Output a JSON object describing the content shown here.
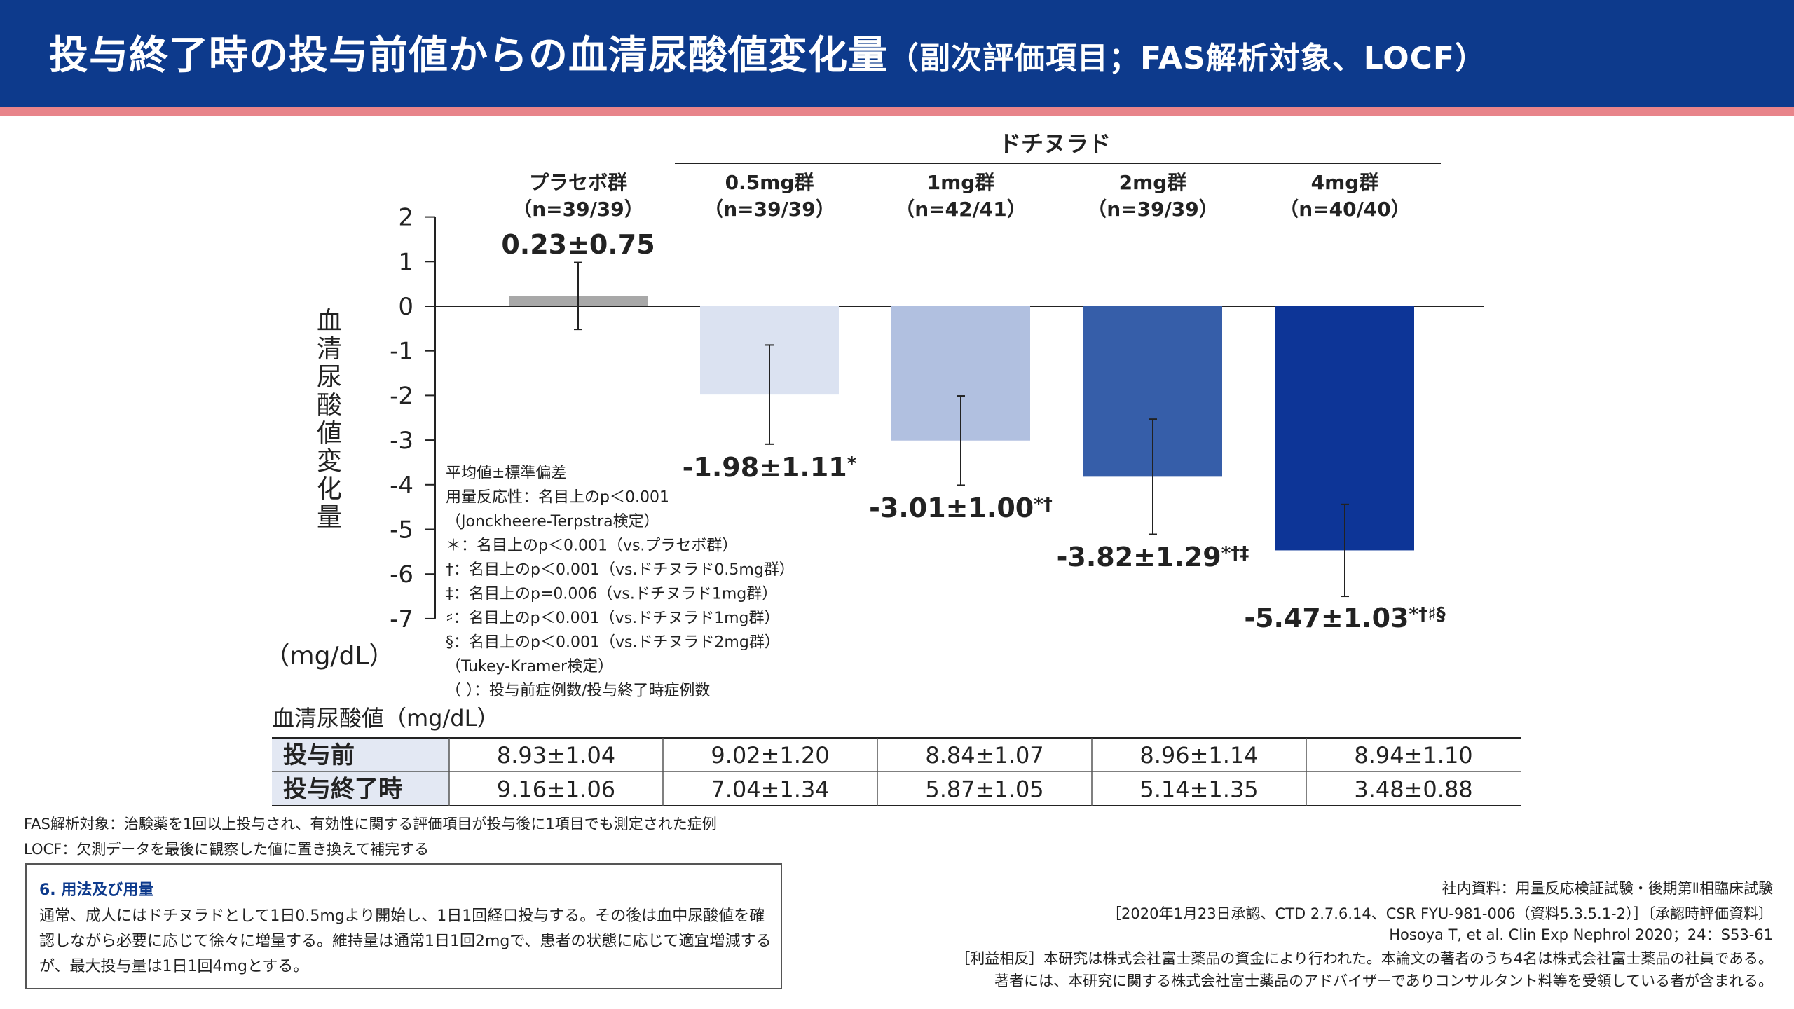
{
  "header": {
    "title_main": "投与終了時の投与前値からの血清尿酸値変化量",
    "title_sub": "（副次評価項目；FAS解析対象、LOCF）"
  },
  "colors": {
    "header_bg": "#0d3a8c",
    "header_stripe": "#e8848a",
    "placebo": "#a8a8a8",
    "dose_05": "#dbe2f1",
    "dose_1": "#b1c0e0",
    "dose_2": "#365ea9",
    "dose_4": "#0d3597"
  },
  "chart_data": {
    "type": "bar",
    "group_label": "ドチヌラド",
    "categories": [
      "プラセボ群",
      "0.5mg群",
      "1mg群",
      "2mg群",
      "4mg群"
    ],
    "n_labels": [
      "（n=39/39）",
      "（n=39/39）",
      "（n=42/41）",
      "（n=39/39）",
      "（n=40/40）"
    ],
    "values": [
      0.23,
      -1.98,
      -3.01,
      -3.82,
      -5.47
    ],
    "errors": [
      0.75,
      1.11,
      1.0,
      1.29,
      1.03
    ],
    "value_labels": [
      "0.23±0.75",
      "-1.98±1.11",
      "-3.01±1.00",
      "-3.82±1.29",
      "-5.47±1.03"
    ],
    "sig_marks": [
      "",
      "*",
      "*†",
      "*†‡",
      "*†♯§"
    ],
    "ylabel": "血清尿酸値変化量",
    "yunit": "（mg/dL）",
    "ylim": [
      -7,
      2
    ],
    "yticks": [
      "2",
      "1",
      "0",
      "-1",
      "-2",
      "-3",
      "-4",
      "-5",
      "-6",
      "-7"
    ],
    "legend_notes": [
      "平均値±標準偏差",
      "用量反応性：名目上のp＜0.001",
      "（Jonckheere-Terpstra検定）",
      "＊：名目上のp＜0.001（vs.プラセボ群）",
      "†：名目上のp＜0.001（vs.ドチヌラド0.5mg群）",
      "‡：名目上のp=0.006（vs.ドチヌラド1mg群）",
      "♯：名目上のp＜0.001（vs.ドチヌラド1mg群）",
      "§：名目上のp＜0.001（vs.ドチヌラド2mg群）",
      "（Tukey-Kramer検定）",
      "（ ）：投与前症例数/投与終了時症例数"
    ]
  },
  "table": {
    "caption": "血清尿酸値（mg/dL）",
    "rows": [
      {
        "label": "投与前",
        "values": [
          "8.93±1.04",
          "9.02±1.20",
          "8.84±1.07",
          "8.96±1.14",
          "8.94±1.10"
        ]
      },
      {
        "label": "投与終了時",
        "values": [
          "9.16±1.06",
          "7.04±1.34",
          "5.87±1.05",
          "5.14±1.35",
          "3.48±0.88"
        ]
      }
    ]
  },
  "footnotes": {
    "fas": "FAS解析対象：治験薬を1回以上投与され、有効性に関する評価項目が投与後に1項目でも測定された症例",
    "locf": "LOCF：欠測データを最後に観察した値に置き換えて補完する"
  },
  "usage": {
    "title": "6. 用法及び用量",
    "text": "通常、成人にはドチヌラドとして1日0.5mgより開始し、1日1回経口投与する。その後は血中尿酸値を確認しながら必要に応じて徐々に増量する。維持量は通常1日1回2mgで、患者の状態に応じて適宜増減するが、最大投与量は1日1回4mgとする。"
  },
  "references": [
    "社内資料：用量反応検証試験・後期第Ⅱ相臨床試験",
    "［2020年1月23日承認、CTD 2.7.6.14、CSR FYU-981-006（資料5.3.5.1-2）］〔承認時評価資料〕",
    "Hosoya T, et al. Clin Exp Nephrol 2020；24：S53-61",
    "［利益相反］本研究は株式会社富士薬品の資金により行われた。本論文の著者のうち4名は株式会社富士薬品の社員である。",
    "著者には、本研究に関する株式会社富士薬品のアドバイザーでありコンサルタント料等を受領している者が含まれる。"
  ]
}
